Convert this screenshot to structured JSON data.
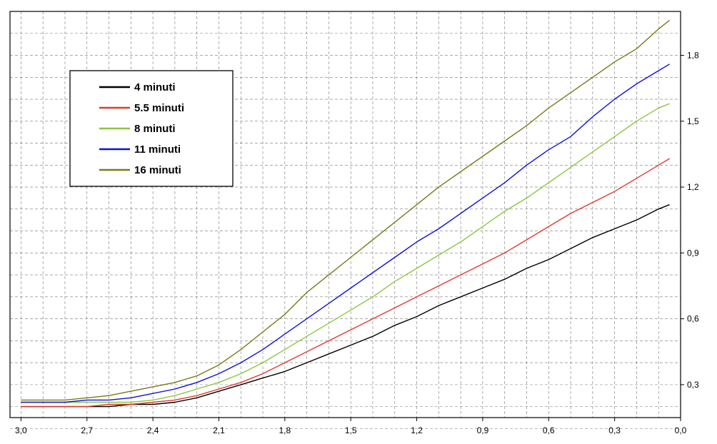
{
  "chart_data": {
    "type": "line",
    "x_reversed": true,
    "xlim": [
      3.05,
      0.0
    ],
    "ylim": [
      0.15,
      2.0
    ],
    "x_ticks": [
      3.0,
      2.7,
      2.4,
      2.1,
      1.8,
      1.5,
      1.2,
      0.9,
      0.6,
      0.3,
      0.0
    ],
    "x_tick_labels": [
      "3,0",
      "2,7",
      "2,4",
      "2,1",
      "1,8",
      "1,5",
      "1,2",
      "0,9",
      "0,6",
      "0,3",
      "0,0"
    ],
    "y_ticks": [
      0.3,
      0.6,
      0.9,
      1.2,
      1.5,
      1.8
    ],
    "y_tick_labels": [
      "0,3",
      "0,6",
      "0,9",
      "1,2",
      "1,5",
      "1,8"
    ],
    "x_minor_step": 0.1,
    "y_minor_step": 0.1,
    "grid": true,
    "y_axis_position": "right",
    "legend_position": "top-left",
    "x": [
      3.0,
      2.9,
      2.8,
      2.7,
      2.6,
      2.5,
      2.4,
      2.3,
      2.2,
      2.1,
      2.0,
      1.9,
      1.8,
      1.7,
      1.6,
      1.5,
      1.4,
      1.3,
      1.2,
      1.1,
      1.0,
      0.9,
      0.8,
      0.7,
      0.6,
      0.5,
      0.4,
      0.3,
      0.2,
      0.1,
      0.05
    ],
    "series": [
      {
        "name": "4 minuti",
        "color": "#000000",
        "values": [
          0.2,
          0.2,
          0.2,
          0.2,
          0.2,
          0.21,
          0.21,
          0.22,
          0.24,
          0.27,
          0.3,
          0.33,
          0.36,
          0.4,
          0.44,
          0.48,
          0.52,
          0.57,
          0.61,
          0.66,
          0.7,
          0.74,
          0.78,
          0.83,
          0.87,
          0.92,
          0.97,
          1.01,
          1.05,
          1.1,
          1.12
        ]
      },
      {
        "name": "5.5 minuti",
        "color": "#e03a2e",
        "values": [
          0.2,
          0.2,
          0.2,
          0.2,
          0.21,
          0.21,
          0.22,
          0.23,
          0.25,
          0.28,
          0.31,
          0.35,
          0.4,
          0.45,
          0.5,
          0.55,
          0.6,
          0.65,
          0.7,
          0.75,
          0.8,
          0.85,
          0.9,
          0.96,
          1.02,
          1.08,
          1.13,
          1.18,
          1.24,
          1.3,
          1.33
        ]
      },
      {
        "name": "8 minuti",
        "color": "#8cc63f",
        "values": [
          0.22,
          0.22,
          0.22,
          0.22,
          0.22,
          0.22,
          0.23,
          0.25,
          0.28,
          0.31,
          0.35,
          0.4,
          0.46,
          0.52,
          0.58,
          0.64,
          0.7,
          0.77,
          0.83,
          0.89,
          0.95,
          1.02,
          1.09,
          1.15,
          1.22,
          1.29,
          1.36,
          1.43,
          1.5,
          1.56,
          1.58
        ]
      },
      {
        "name": "11 minuti",
        "color": "#1010dd",
        "values": [
          0.22,
          0.22,
          0.22,
          0.23,
          0.23,
          0.24,
          0.26,
          0.28,
          0.31,
          0.35,
          0.4,
          0.46,
          0.53,
          0.6,
          0.67,
          0.74,
          0.81,
          0.88,
          0.95,
          1.01,
          1.08,
          1.15,
          1.22,
          1.3,
          1.37,
          1.43,
          1.52,
          1.6,
          1.67,
          1.73,
          1.76
        ]
      },
      {
        "name": "16 minuti",
        "color": "#7a7a1a",
        "values": [
          0.23,
          0.23,
          0.23,
          0.24,
          0.25,
          0.27,
          0.29,
          0.31,
          0.34,
          0.39,
          0.46,
          0.54,
          0.62,
          0.72,
          0.8,
          0.88,
          0.96,
          1.04,
          1.12,
          1.2,
          1.27,
          1.34,
          1.41,
          1.48,
          1.56,
          1.63,
          1.7,
          1.77,
          1.83,
          1.92,
          1.96
        ]
      }
    ]
  }
}
